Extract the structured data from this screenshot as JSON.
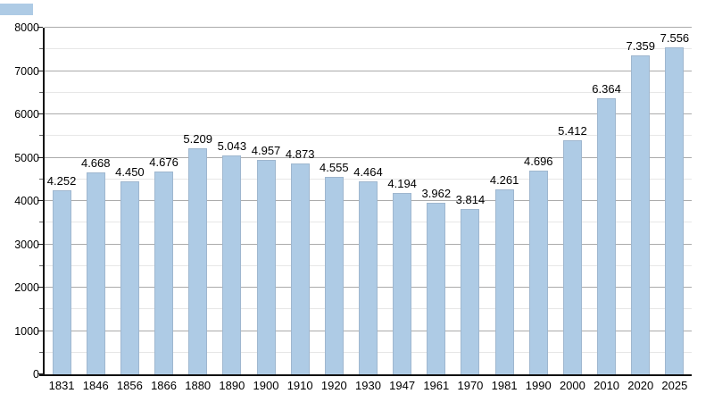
{
  "corner_swatch": {
    "color": "#aecbe5"
  },
  "chart_data": {
    "type": "bar",
    "title": "",
    "xlabel": "",
    "ylabel": "",
    "categories": [
      "1831",
      "1846",
      "1856",
      "1866",
      "1880",
      "1890",
      "1900",
      "1910",
      "1920",
      "1930",
      "1947",
      "1961",
      "1970",
      "1981",
      "1990",
      "2000",
      "2010",
      "2020",
      "2025"
    ],
    "values": [
      4252,
      4668,
      4450,
      4676,
      5209,
      5043,
      4957,
      4873,
      4555,
      4464,
      4194,
      3962,
      3814,
      4261,
      4696,
      5412,
      6364,
      7359,
      7556
    ],
    "value_labels": [
      "4.252",
      "4.668",
      "4.450",
      "4.676",
      "5.209",
      "5.043",
      "4.957",
      "4.873",
      "4.555",
      "4.464",
      "4.194",
      "3.962",
      "3.814",
      "4.261",
      "4.696",
      "5.412",
      "6.364",
      "7.359",
      "7.556"
    ],
    "ylim": [
      0,
      8000
    ],
    "y_major_step": 1000,
    "y_minor_step": 500,
    "y_tick_labels": [
      "0",
      "1000",
      "2000",
      "3000",
      "4000",
      "5000",
      "6000",
      "7000",
      "8000"
    ],
    "grid": "on",
    "legend_position": "none",
    "colors": {
      "bar_fill": "#aecbe5",
      "bar_border": "rgba(125,140,155,0.30)",
      "grid_major": "#ababab",
      "grid_minor": "#e7e7e7",
      "axis": "#111111",
      "text": "#000000"
    }
  }
}
